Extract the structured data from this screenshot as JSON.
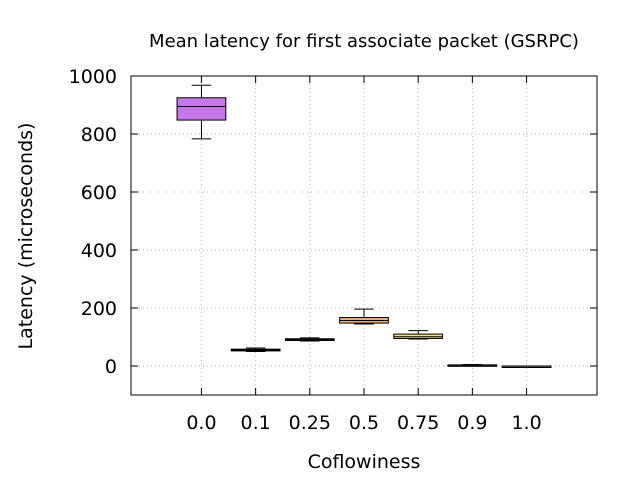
{
  "chart_data": {
    "type": "box",
    "title": "Mean latency for first associate packet (GSRPC)",
    "xlabel": "Coflowiness",
    "ylabel": "Latency (microseconds)",
    "ylim": [
      -100,
      1000
    ],
    "yticks": [
      0,
      200,
      400,
      600,
      800,
      1000
    ],
    "grid": true,
    "categories": [
      "0.0",
      "0.1",
      "0.25",
      "0.5",
      "0.75",
      "0.9",
      "1.0"
    ],
    "boxes": [
      {
        "category": "0.0",
        "whisker_low": 783,
        "q1": 848,
        "median": 895,
        "q3": 925,
        "whisker_high": 968,
        "color": "#c678e8"
      },
      {
        "category": "0.1",
        "whisker_low": 50,
        "q1": 52,
        "median": 55,
        "q3": 58,
        "whisker_high": 62,
        "color": "#2b2b6b"
      },
      {
        "category": "0.25",
        "whisker_low": 86,
        "q1": 88,
        "median": 91,
        "q3": 94,
        "whisker_high": 97,
        "color": "#b0c4de"
      },
      {
        "category": "0.5",
        "whisker_low": 145,
        "q1": 148,
        "median": 157,
        "q3": 167,
        "whisker_high": 196,
        "color": "#f0b07a"
      },
      {
        "category": "0.75",
        "whisker_low": 93,
        "q1": 95,
        "median": 101,
        "q3": 110,
        "whisker_high": 122,
        "color": "#f5e08a"
      },
      {
        "category": "0.9",
        "whisker_low": 1,
        "q1": 2,
        "median": 3,
        "q3": 4,
        "whisker_high": 5,
        "color": "#555555"
      },
      {
        "category": "1.0",
        "whisker_low": 0,
        "q1": 0,
        "median": 0,
        "q3": 0,
        "whisker_high": 0,
        "color": "#777777"
      }
    ]
  }
}
